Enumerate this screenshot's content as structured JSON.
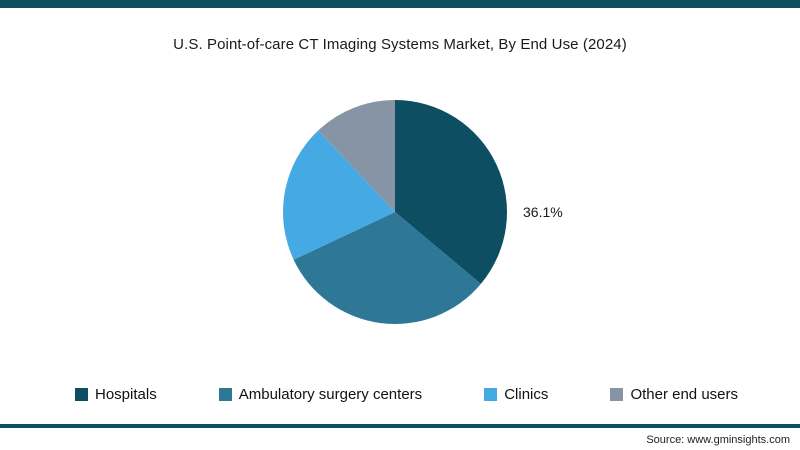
{
  "accent_color": "#0d4e63",
  "chart_data": {
    "type": "pie",
    "title": "U.S. Point-of-care CT Imaging Systems Market, By End Use (2024)",
    "categories": [
      "Hospitals",
      "Ambulatory surgery centers",
      "Clinics",
      "Other end users"
    ],
    "values": [
      36.1,
      31.9,
      20.0,
      12.0
    ],
    "colors": [
      "#0d4e63",
      "#2f7796",
      "#45aae4",
      "#8794a6"
    ],
    "start_angle_deg": 0,
    "direction": "clockwise",
    "data_label": "36.1%",
    "labeled_slice": "Hospitals",
    "legend_position": "bottom"
  },
  "footer": {
    "source": "Source: www.gminsights.com"
  }
}
